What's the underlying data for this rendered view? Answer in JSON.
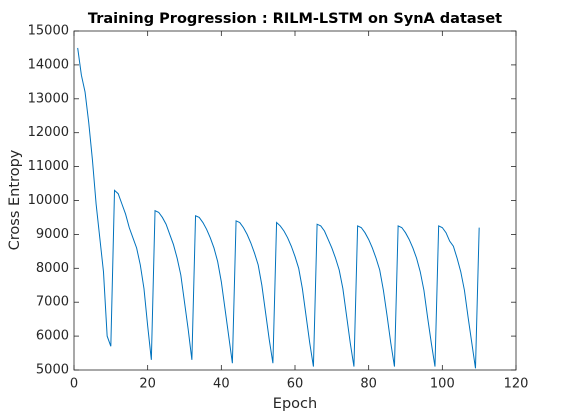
{
  "chart_data": {
    "type": "line",
    "title": "Training Progression : RILM-LSTM on SynA dataset",
    "x_label": "Epoch",
    "y_label": "Cross Entropy",
    "x": [
      1,
      2,
      3,
      4,
      5,
      6,
      7,
      8,
      9,
      10,
      11,
      12,
      13,
      14,
      15,
      16,
      17,
      18,
      19,
      20,
      21,
      22,
      23,
      24,
      25,
      26,
      27,
      28,
      29,
      30,
      31,
      32,
      33,
      34,
      35,
      36,
      37,
      38,
      39,
      40,
      41,
      42,
      43,
      44,
      45,
      46,
      47,
      48,
      49,
      50,
      51,
      52,
      53,
      54,
      55,
      56,
      57,
      58,
      59,
      60,
      61,
      62,
      63,
      64,
      65,
      66,
      67,
      68,
      69,
      70,
      71,
      72,
      73,
      74,
      75,
      76,
      77,
      78,
      79,
      80,
      81,
      82,
      83,
      84,
      85,
      86,
      87,
      88,
      89,
      90,
      91,
      92,
      93,
      94,
      95,
      96,
      97,
      98,
      99,
      100,
      101,
      102,
      103,
      104,
      105,
      106,
      107,
      108,
      109,
      110
    ],
    "series": [
      {
        "name": "Cross Entropy",
        "color": "#0072bd",
        "values": [
          14500,
          13700,
          13200,
          12300,
          11200,
          9900,
          8900,
          7900,
          6000,
          5700,
          10300,
          10200,
          9900,
          9600,
          9200,
          8900,
          8600,
          8100,
          7400,
          6300,
          5300,
          9700,
          9650,
          9500,
          9300,
          9000,
          8700,
          8300,
          7800,
          7000,
          6200,
          5300,
          9550,
          9500,
          9350,
          9150,
          8900,
          8600,
          8200,
          7600,
          6800,
          6000,
          5200,
          9400,
          9350,
          9200,
          9000,
          8750,
          8450,
          8100,
          7500,
          6700,
          5900,
          5200,
          9350,
          9250,
          9100,
          8900,
          8650,
          8350,
          8000,
          7400,
          6600,
          5800,
          5100,
          9300,
          9250,
          9100,
          8850,
          8600,
          8300,
          7950,
          7400,
          6600,
          5800,
          5100,
          9250,
          9200,
          9050,
          8850,
          8600,
          8300,
          7950,
          7350,
          6600,
          5800,
          5100,
          9250,
          9200,
          9050,
          8850,
          8600,
          8300,
          7900,
          7350,
          6550,
          5800,
          5100,
          9250,
          9200,
          9050,
          8800,
          8650,
          8300,
          7900,
          7350,
          6550,
          5800,
          5050,
          9200
        ]
      }
    ],
    "xlim": [
      0,
      120
    ],
    "xticks": [
      0,
      20,
      40,
      60,
      80,
      100,
      120
    ],
    "ylim": [
      5000,
      15000
    ],
    "yticks": [
      5000,
      6000,
      7000,
      8000,
      9000,
      10000,
      11000,
      12000,
      13000,
      14000,
      15000
    ],
    "grid": false
  }
}
